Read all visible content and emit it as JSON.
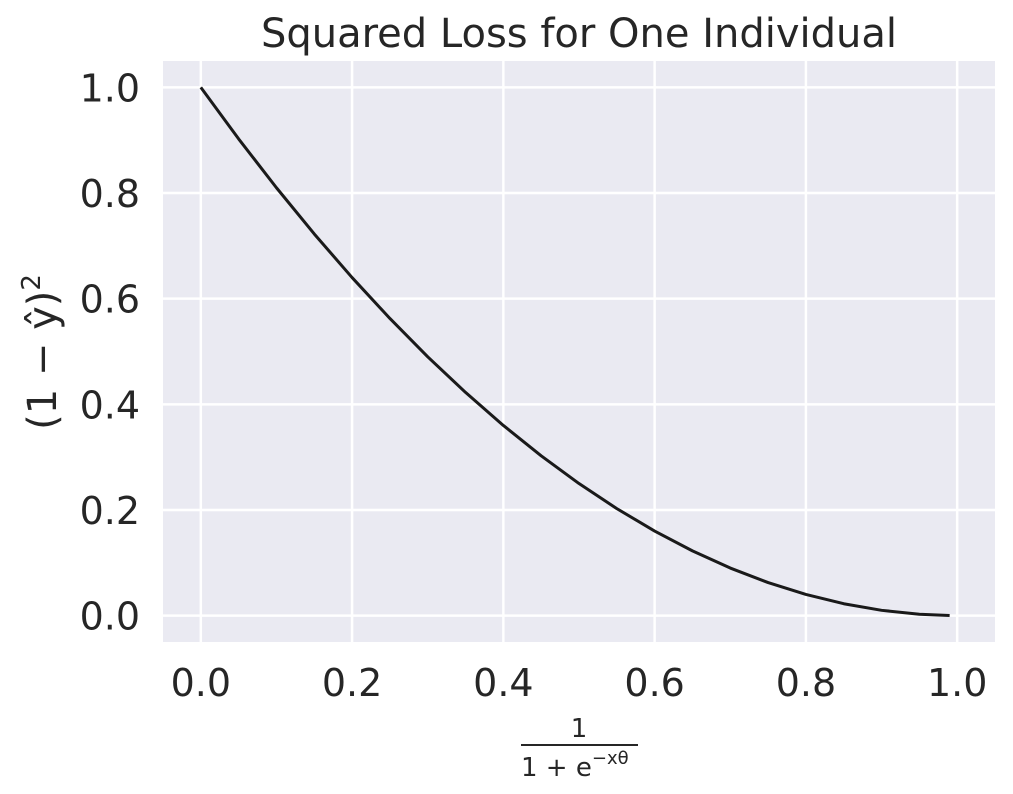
{
  "chart_data": {
    "type": "line",
    "title": "Squared Loss for One Individual",
    "xlabel": {
      "numerator": "1",
      "denominator_base": "1 + e",
      "denominator_exponent": "−xθ"
    },
    "ylabel": {
      "main": "(1 − ŷ)",
      "exponent": "2"
    },
    "xlim": [
      -0.05,
      1.05
    ],
    "ylim": [
      -0.05,
      1.05
    ],
    "x_ticks": [
      0.0,
      0.2,
      0.4,
      0.6,
      0.8,
      1.0
    ],
    "x_tick_labels": [
      "0.0",
      "0.2",
      "0.4",
      "0.6",
      "0.8",
      "1.0"
    ],
    "y_ticks": [
      0.0,
      0.2,
      0.4,
      0.6,
      0.8,
      1.0
    ],
    "y_tick_labels": [
      "0.0",
      "0.2",
      "0.4",
      "0.6",
      "0.8",
      "1.0"
    ],
    "grid": true,
    "series": [
      {
        "x": [
          0.0,
          0.05,
          0.1,
          0.15,
          0.2,
          0.25,
          0.3,
          0.35,
          0.4,
          0.45,
          0.5,
          0.55,
          0.6,
          0.65,
          0.7,
          0.75,
          0.8,
          0.85,
          0.9,
          0.95,
          0.99
        ],
        "y": [
          1.0,
          0.9025,
          0.81,
          0.7225,
          0.64,
          0.5625,
          0.49,
          0.4225,
          0.36,
          0.3025,
          0.25,
          0.2025,
          0.16,
          0.1225,
          0.09,
          0.0625,
          0.04,
          0.0225,
          0.01,
          0.0025,
          0.0001
        ],
        "color": "#1a1a1a"
      }
    ],
    "colors": {
      "plot_background": "#eaeaf2",
      "grid": "#ffffff",
      "line": "#1a1a1a",
      "text": "#262626"
    }
  }
}
